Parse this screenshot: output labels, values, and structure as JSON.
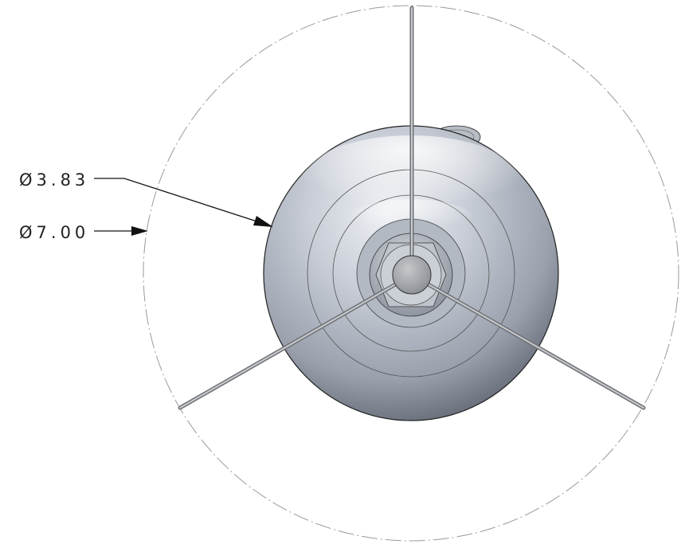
{
  "drawing": {
    "dimensions": [
      {
        "id": "inner",
        "label": "Ø3.83"
      },
      {
        "id": "outer",
        "label": "Ø7.00"
      }
    ],
    "colors": {
      "body_light": "#d9dde4",
      "body_mid": "#a4abb7",
      "body_dark": "#5f6672",
      "line": "#111111",
      "spoke": "#8c8f94",
      "centerline": "#9a9a9a"
    }
  }
}
